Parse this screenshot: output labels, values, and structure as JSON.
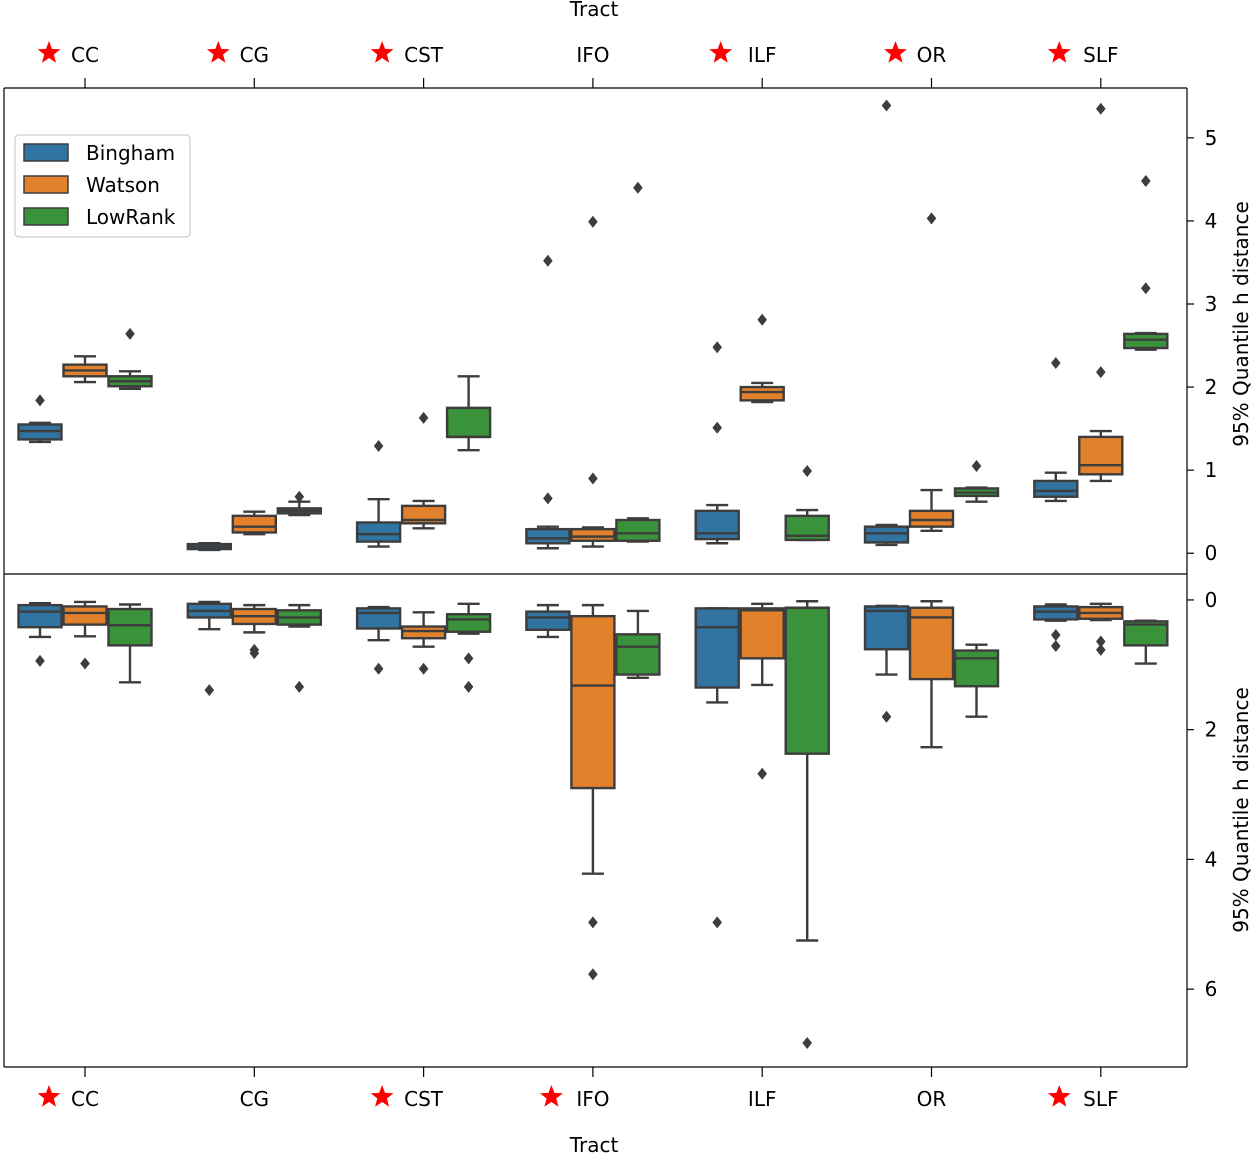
{
  "colors": {
    "Bingham": "#3274a1",
    "Watson": "#e1812c",
    "LowRank": "#3a923a",
    "edge": "#3d3d3d",
    "star": "#ff0000"
  },
  "legend": {
    "items": [
      "Bingham",
      "Watson",
      "LowRank"
    ],
    "placement": "upper-left"
  },
  "chart_data": [
    {
      "type": "boxplot",
      "panel": "top",
      "xlabel": "Tract",
      "ylabel": "95% Quantile h distance",
      "ylim": [
        -0.25,
        5.6
      ],
      "inverted": false,
      "yticks": [
        0,
        1,
        2,
        3,
        4,
        5
      ],
      "categories": [
        "CC",
        "CG",
        "CST",
        "IFO",
        "ILF",
        "OR",
        "SLF"
      ],
      "starred": [
        true,
        true,
        true,
        false,
        true,
        true,
        true
      ],
      "series": [
        {
          "name": "Bingham",
          "boxes": [
            {
              "q1": 1.37,
              "median": 1.47,
              "q3": 1.55,
              "lo": 1.34,
              "hi": 1.57,
              "fliers": [
                1.84
              ]
            },
            {
              "q1": 0.05,
              "median": 0.08,
              "q3": 0.11,
              "lo": 0.04,
              "hi": 0.12,
              "fliers": []
            },
            {
              "q1": 0.14,
              "median": 0.23,
              "q3": 0.37,
              "lo": 0.08,
              "hi": 0.65,
              "fliers": [
                1.29
              ]
            },
            {
              "q1": 0.12,
              "median": 0.18,
              "q3": 0.29,
              "lo": 0.06,
              "hi": 0.32,
              "fliers": [
                0.66,
                3.52
              ]
            },
            {
              "q1": 0.17,
              "median": 0.24,
              "q3": 0.51,
              "lo": 0.12,
              "hi": 0.58,
              "fliers": [
                1.51,
                2.48
              ]
            },
            {
              "q1": 0.13,
              "median": 0.24,
              "q3": 0.32,
              "lo": 0.1,
              "hi": 0.34,
              "fliers": [
                5.39
              ]
            },
            {
              "q1": 0.68,
              "median": 0.75,
              "q3": 0.87,
              "lo": 0.63,
              "hi": 0.97,
              "fliers": [
                2.29
              ]
            }
          ]
        },
        {
          "name": "Watson",
          "boxes": [
            {
              "q1": 2.13,
              "median": 2.2,
              "q3": 2.27,
              "lo": 2.06,
              "hi": 2.37,
              "fliers": []
            },
            {
              "q1": 0.25,
              "median": 0.32,
              "q3": 0.45,
              "lo": 0.23,
              "hi": 0.5,
              "fliers": []
            },
            {
              "q1": 0.36,
              "median": 0.4,
              "q3": 0.57,
              "lo": 0.3,
              "hi": 0.63,
              "fliers": [
                1.63
              ]
            },
            {
              "q1": 0.15,
              "median": 0.2,
              "q3": 0.29,
              "lo": 0.08,
              "hi": 0.31,
              "fliers": [
                0.9,
                3.99
              ]
            },
            {
              "q1": 1.84,
              "median": 1.94,
              "q3": 2.0,
              "lo": 1.82,
              "hi": 2.05,
              "fliers": [
                2.81
              ]
            },
            {
              "q1": 0.32,
              "median": 0.4,
              "q3": 0.51,
              "lo": 0.27,
              "hi": 0.76,
              "fliers": [
                4.03
              ]
            },
            {
              "q1": 0.95,
              "median": 1.06,
              "q3": 1.4,
              "lo": 0.87,
              "hi": 1.47,
              "fliers": [
                2.18,
                5.35
              ]
            }
          ]
        },
        {
          "name": "LowRank",
          "boxes": [
            {
              "q1": 2.01,
              "median": 2.07,
              "q3": 2.13,
              "lo": 1.98,
              "hi": 2.19,
              "fliers": [
                2.64
              ]
            },
            {
              "q1": 0.48,
              "median": 0.51,
              "q3": 0.54,
              "lo": 0.46,
              "hi": 0.62,
              "fliers": [
                0.68
              ]
            },
            {
              "q1": 1.4,
              "median": 1.4,
              "q3": 1.75,
              "lo": 1.24,
              "hi": 2.13,
              "fliers": []
            },
            {
              "q1": 0.15,
              "median": 0.24,
              "q3": 0.4,
              "lo": 0.14,
              "hi": 0.42,
              "fliers": [
                4.4
              ]
            },
            {
              "q1": 0.16,
              "median": 0.21,
              "q3": 0.45,
              "lo": 0.16,
              "hi": 0.52,
              "fliers": [
                0.99
              ]
            },
            {
              "q1": 0.69,
              "median": 0.73,
              "q3": 0.78,
              "lo": 0.62,
              "hi": 0.79,
              "fliers": [
                1.05
              ]
            },
            {
              "q1": 2.47,
              "median": 2.57,
              "q3": 2.64,
              "lo": 2.45,
              "hi": 2.65,
              "fliers": [
                3.19,
                4.48
              ]
            }
          ]
        }
      ]
    },
    {
      "type": "boxplot",
      "panel": "bottom",
      "xlabel": "Tract",
      "ylabel": "95% Quantile h distance",
      "ylim": [
        -0.4,
        7.2
      ],
      "inverted": true,
      "yticks": [
        0,
        2,
        4,
        6
      ],
      "categories": [
        "CC",
        "CG",
        "CST",
        "IFO",
        "ILF",
        "OR",
        "SLF"
      ],
      "starred": [
        true,
        false,
        true,
        true,
        false,
        false,
        true
      ],
      "series": [
        {
          "name": "Bingham",
          "boxes": [
            {
              "q1": 0.08,
              "median": 0.18,
              "q3": 0.42,
              "lo": 0.05,
              "hi": 0.57,
              "fliers": [
                0.94
              ]
            },
            {
              "q1": 0.06,
              "median": 0.17,
              "q3": 0.27,
              "lo": 0.03,
              "hi": 0.45,
              "fliers": [
                1.39
              ]
            },
            {
              "q1": 0.13,
              "median": 0.2,
              "q3": 0.44,
              "lo": 0.11,
              "hi": 0.62,
              "fliers": [
                1.06
              ]
            },
            {
              "q1": 0.18,
              "median": 0.27,
              "q3": 0.46,
              "lo": 0.08,
              "hi": 0.57,
              "fliers": []
            },
            {
              "q1": 0.13,
              "median": 0.42,
              "q3": 1.35,
              "lo": 0.13,
              "hi": 1.58,
              "fliers": [
                4.97
              ]
            },
            {
              "q1": 0.1,
              "median": 0.17,
              "q3": 0.76,
              "lo": 0.09,
              "hi": 1.15,
              "fliers": [
                1.8
              ]
            },
            {
              "q1": 0.1,
              "median": 0.18,
              "q3": 0.3,
              "lo": 0.07,
              "hi": 0.32,
              "fliers": [
                0.54,
                0.71
              ]
            }
          ]
        },
        {
          "name": "Watson",
          "boxes": [
            {
              "q1": 0.1,
              "median": 0.2,
              "q3": 0.38,
              "lo": 0.03,
              "hi": 0.56,
              "fliers": [
                0.98
              ]
            },
            {
              "q1": 0.14,
              "median": 0.25,
              "q3": 0.37,
              "lo": 0.08,
              "hi": 0.5,
              "fliers": [
                0.77,
                0.82
              ]
            },
            {
              "q1": 0.41,
              "median": 0.48,
              "q3": 0.59,
              "lo": 0.19,
              "hi": 0.72,
              "fliers": [
                1.06
              ]
            },
            {
              "q1": 0.25,
              "median": 1.32,
              "q3": 2.9,
              "lo": 0.08,
              "hi": 4.22,
              "fliers": [
                4.97,
                5.77
              ]
            },
            {
              "q1": 0.13,
              "median": 0.16,
              "q3": 0.9,
              "lo": 0.06,
              "hi": 1.31,
              "fliers": [
                2.68
              ]
            },
            {
              "q1": 0.12,
              "median": 0.27,
              "q3": 1.22,
              "lo": 0.02,
              "hi": 2.27,
              "fliers": []
            },
            {
              "q1": 0.11,
              "median": 0.2,
              "q3": 0.29,
              "lo": 0.06,
              "hi": 0.31,
              "fliers": [
                0.64,
                0.77
              ]
            }
          ]
        },
        {
          "name": "LowRank",
          "boxes": [
            {
              "q1": 0.14,
              "median": 0.39,
              "q3": 0.7,
              "lo": 0.07,
              "hi": 1.27,
              "fliers": []
            },
            {
              "q1": 0.16,
              "median": 0.27,
              "q3": 0.38,
              "lo": 0.08,
              "hi": 0.41,
              "fliers": [
                1.34
              ]
            },
            {
              "q1": 0.22,
              "median": 0.3,
              "q3": 0.49,
              "lo": 0.06,
              "hi": 0.52,
              "fliers": [
                0.9,
                1.34
              ]
            },
            {
              "q1": 0.53,
              "median": 0.72,
              "q3": 1.15,
              "lo": 0.17,
              "hi": 1.2,
              "fliers": []
            },
            {
              "q1": 0.12,
              "median": 0.12,
              "q3": 2.37,
              "lo": 0.02,
              "hi": 5.25,
              "fliers": [
                6.83
              ]
            },
            {
              "q1": 0.78,
              "median": 0.9,
              "q3": 1.33,
              "lo": 0.69,
              "hi": 1.8,
              "fliers": []
            },
            {
              "q1": 0.33,
              "median": 0.38,
              "q3": 0.7,
              "lo": 0.32,
              "hi": 0.98,
              "fliers": []
            }
          ]
        }
      ]
    }
  ]
}
